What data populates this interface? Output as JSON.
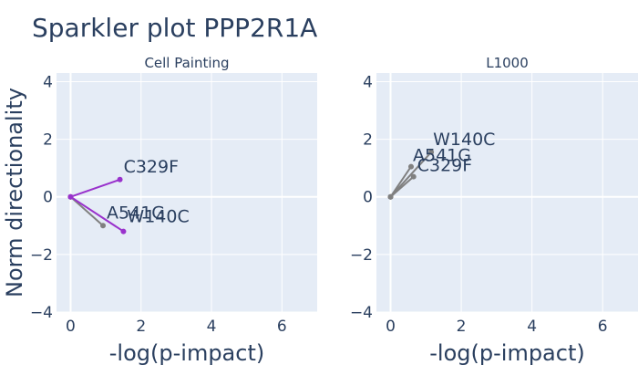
{
  "figure": {
    "title": "Sparkler plot PPP2R1A",
    "ylabel": "Norm directionality"
  },
  "colors": {
    "plot_bg": "#e5ecf6",
    "grid": "#ffffff",
    "text": "#2a3f5f",
    "purple": "#9932cc",
    "gray": "#808080"
  },
  "chart_data": [
    {
      "type": "scatter",
      "title": "Cell Painting",
      "xlabel": "-log(p-impact)",
      "ylabel": "Norm directionality",
      "xlim": [
        -0.4,
        7.0
      ],
      "ylim": [
        -4,
        4.3
      ],
      "xticks": [
        0,
        2,
        4,
        6
      ],
      "yticks": [
        -4,
        -2,
        0,
        2,
        4
      ],
      "grid": true,
      "series": [
        {
          "name": "C329F",
          "color": "purple",
          "x": [
            0,
            1.4
          ],
          "y": [
            0,
            0.6
          ]
        },
        {
          "name": "A541G",
          "color": "gray",
          "x": [
            0,
            0.92
          ],
          "y": [
            0,
            -1.0
          ]
        },
        {
          "name": "W140C",
          "color": "purple",
          "x": [
            0,
            1.5
          ],
          "y": [
            0,
            -1.2
          ]
        }
      ]
    },
    {
      "type": "scatter",
      "title": "L1000",
      "xlabel": "-log(p-impact)",
      "ylabel": "",
      "xlim": [
        -0.4,
        7.0
      ],
      "ylim": [
        -4,
        4.3
      ],
      "xticks": [
        0,
        2,
        4,
        6
      ],
      "yticks": [
        -4,
        -2,
        0,
        2,
        4
      ],
      "grid": true,
      "series": [
        {
          "name": "W140C",
          "color": "gray",
          "x": [
            0,
            1.15
          ],
          "y": [
            0,
            1.55
          ]
        },
        {
          "name": "A541G",
          "color": "gray",
          "x": [
            0,
            0.58
          ],
          "y": [
            0,
            1.05
          ]
        },
        {
          "name": "C329F",
          "color": "gray",
          "x": [
            0,
            0.65
          ],
          "y": [
            0,
            0.7
          ]
        }
      ]
    }
  ]
}
